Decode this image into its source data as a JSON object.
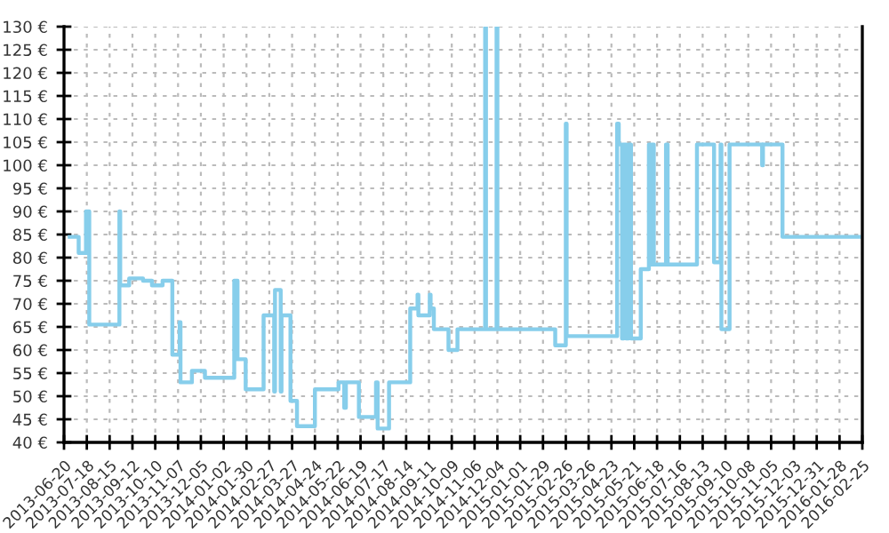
{
  "chart_data": {
    "type": "step",
    "x": [
      "2013-06-27",
      "2013-07-08",
      "2013-07-17",
      "2013-07-18",
      "2013-07-19",
      "2013-07-21",
      "2013-08-27",
      "2013-08-28",
      "2013-09-08",
      "2013-09-25",
      "2013-10-06",
      "2013-10-19",
      "2013-10-31",
      "2013-11-09",
      "2013-11-10",
      "2013-11-24",
      "2013-12-10",
      "2014-01-15",
      "2014-01-16",
      "2014-01-17",
      "2014-01-19",
      "2014-01-29",
      "2014-02-20",
      "2014-03-05",
      "2014-03-06",
      "2014-03-13",
      "2014-03-14",
      "2014-03-25",
      "2014-04-02",
      "2014-04-24",
      "2014-05-23",
      "2014-05-30",
      "2014-06-01",
      "2014-06-17",
      "2014-07-08",
      "2014-07-10",
      "2014-07-24",
      "2014-08-19",
      "2014-08-28",
      "2014-08-29",
      "2014-09-12",
      "2014-09-13",
      "2014-09-17",
      "2014-10-05",
      "2014-10-16",
      "2014-11-19",
      "2014-11-20",
      "2014-12-03",
      "2014-12-04",
      "2015-02-13",
      "2015-02-26",
      "2015-02-27",
      "2015-04-30",
      "2015-05-02",
      "2015-05-06",
      "2015-05-08",
      "2015-05-11",
      "2015-05-14",
      "2015-05-17",
      "2015-05-29",
      "2015-06-08",
      "2015-06-10",
      "2015-06-12",
      "2015-06-14",
      "2015-06-29",
      "2015-07-01",
      "2015-08-06",
      "2015-08-27",
      "2015-09-04",
      "2015-09-05",
      "2015-09-15",
      "2015-10-25",
      "2015-10-26",
      "2015-11-19",
      "2016-02-21"
    ],
    "series": [
      {
        "color": "#87ceeb",
        "values": [
          84.5,
          81,
          90,
          81,
          90,
          65.5,
          90,
          74,
          75.5,
          75,
          74,
          75,
          59,
          66,
          53,
          55.5,
          54,
          75,
          58,
          75,
          58,
          51.5,
          67.5,
          51,
          73,
          51,
          67.5,
          49,
          43.5,
          51.5,
          53,
          47.5,
          53,
          45.5,
          53,
          43,
          53,
          69,
          72,
          67.5,
          72,
          69,
          64.5,
          60,
          64.5,
          130,
          64.5,
          130,
          64.5,
          61,
          109,
          63,
          109,
          104.5,
          62.5,
          104.5,
          62.5,
          104.5,
          62.5,
          77.5,
          104.5,
          78.5,
          104.5,
          78.5,
          104.5,
          78.5,
          104.5,
          79,
          104.5,
          64.5,
          104.5,
          100,
          104.5,
          84.5,
          84.5
        ]
      }
    ],
    "xlim": [
      "2013-06-20",
      "2016-02-25"
    ],
    "xticks": [
      "2013-06-20",
      "2013-07-18",
      "2013-08-15",
      "2013-09-12",
      "2013-10-10",
      "2013-11-07",
      "2013-12-05",
      "2014-01-02",
      "2014-01-30",
      "2014-02-27",
      "2014-03-27",
      "2014-04-24",
      "2014-05-22",
      "2014-06-19",
      "2014-07-17",
      "2014-08-14",
      "2014-09-11",
      "2014-10-09",
      "2014-11-06",
      "2014-12-04",
      "2015-01-01",
      "2015-01-29",
      "2015-02-26",
      "2015-03-26",
      "2015-04-23",
      "2015-05-21",
      "2015-06-18",
      "2015-07-16",
      "2015-08-13",
      "2015-09-10",
      "2015-10-08",
      "2015-11-05",
      "2015-12-03",
      "2015-12-31",
      "2016-01-28",
      "2016-02-25"
    ],
    "ylim": [
      40,
      130
    ],
    "yticks": [
      {
        "value": 40,
        "label": "40 €"
      },
      {
        "value": 45,
        "label": "45 €"
      },
      {
        "value": 50,
        "label": "50 €"
      },
      {
        "value": 55,
        "label": "55 €"
      },
      {
        "value": 60,
        "label": "60 €"
      },
      {
        "value": 65,
        "label": "65 €"
      },
      {
        "value": 70,
        "label": "70 €"
      },
      {
        "value": 75,
        "label": "75 €"
      },
      {
        "value": 80,
        "label": "80 €"
      },
      {
        "value": 85,
        "label": "85 €"
      },
      {
        "value": 90,
        "label": "90 €"
      },
      {
        "value": 95,
        "label": "95 €"
      },
      {
        "value": 100,
        "label": "100 €"
      },
      {
        "value": 105,
        "label": "105 €"
      },
      {
        "value": 110,
        "label": "110 €"
      },
      {
        "value": 115,
        "label": "115 €"
      },
      {
        "value": 120,
        "label": "120 €"
      },
      {
        "value": 125,
        "label": "125 €"
      },
      {
        "value": 130,
        "label": "130 €"
      }
    ],
    "grid": true,
    "line_style": "solid"
  }
}
